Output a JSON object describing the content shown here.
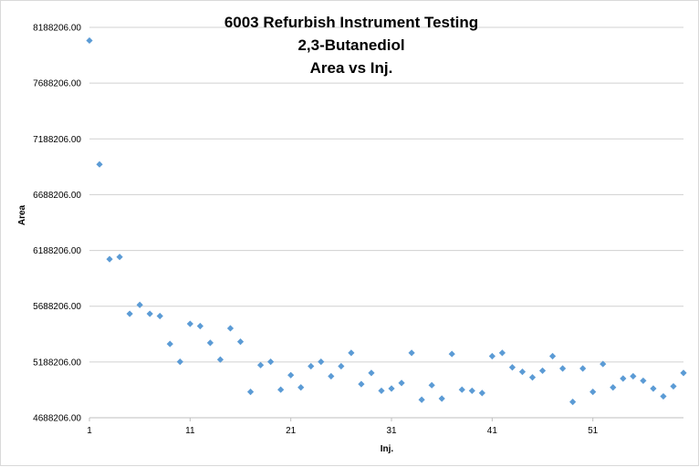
{
  "chart_data": {
    "type": "scatter",
    "title": [
      "6003 Refurbish Instrument Testing",
      "2,3-Butanediol",
      "Area vs Inj."
    ],
    "xlabel": "Inj.",
    "ylabel": "Area",
    "xlim": [
      1,
      60
    ],
    "ylim": [
      4688206,
      8188206
    ],
    "x_ticks": [
      1,
      11,
      21,
      31,
      41,
      51
    ],
    "y_ticks": [
      4688206,
      5188206,
      5688206,
      6188206,
      6688206,
      7188206,
      7688206,
      8188206
    ],
    "y_tick_labels": [
      "4688206.00",
      "5188206.00",
      "5688206.00",
      "6188206.00",
      "6688206.00",
      "7188206.00",
      "7688206.00",
      "8188206.00"
    ],
    "grid": "horizontal",
    "legend": "none",
    "marker_color": "#5b9bd5",
    "series": [
      {
        "x": [
          1,
          2,
          3,
          4,
          5,
          6,
          7,
          8,
          9,
          10,
          11,
          12,
          13,
          14,
          15,
          16,
          17,
          18,
          19,
          20,
          21,
          22,
          23,
          24,
          25,
          26,
          27,
          28,
          29,
          30,
          31,
          32,
          33,
          34,
          35,
          36,
          37,
          38,
          39,
          40,
          41,
          42,
          43,
          44,
          45,
          46,
          47,
          48,
          49,
          50,
          51,
          52,
          53,
          54,
          55,
          56,
          57,
          58,
          59,
          60
        ],
        "values": [
          8070000,
          6960000,
          6110000,
          6130000,
          5620000,
          5700000,
          5620000,
          5600000,
          5350000,
          5190000,
          5530000,
          5510000,
          5360000,
          5210000,
          5490000,
          5370000,
          4920000,
          5160000,
          5190000,
          4940000,
          5070000,
          4960000,
          5150000,
          5190000,
          5060000,
          5150000,
          5270000,
          4990000,
          5090000,
          4930000,
          4950000,
          5000000,
          5270000,
          4850000,
          4980000,
          4860000,
          5260000,
          4940000,
          4930000,
          4910000,
          5240000,
          5270000,
          5140000,
          5100000,
          5050000,
          5110000,
          5240000,
          5130000,
          4830000,
          5130000,
          4920000,
          5170000,
          4960000,
          5040000,
          5060000,
          5020000,
          4950000,
          4880000,
          4970000,
          5090000
        ]
      }
    ]
  }
}
